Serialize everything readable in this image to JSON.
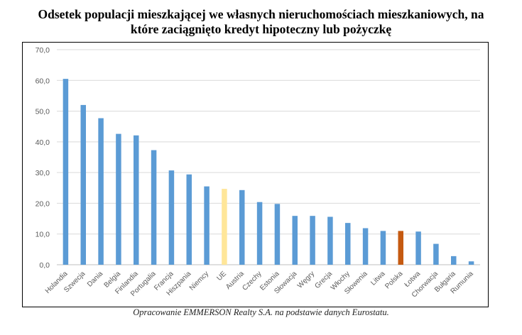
{
  "title_line1": "Odsetek populacji mieszkającej we własnych nieruchomościach mieszkaniowych, na",
  "title_line2": "które zaciągnięto kredyt hipoteczny lub pożyczkę",
  "caption": "Opracowanie EMMERSON Realty S.A. na podstawie danych Eurostatu.",
  "colors": {
    "default": "#5b9bd5",
    "ue": "#ffe699",
    "polska": "#c55a11",
    "grid": "#d9d9d9",
    "axis_text": "#595959"
  },
  "chart_data": {
    "type": "bar",
    "title": "Odsetek populacji mieszkającej we własnych nieruchomościach mieszkaniowych, na które zaciągnięto kredyt hipoteczny lub pożyczkę",
    "categories": [
      "Holandia",
      "Szwecja",
      "Dania",
      "Belgia",
      "Finlandia",
      "Portugalia",
      "Francja",
      "Hiszpania",
      "Niemcy",
      "UE",
      "Austria",
      "Czechy",
      "Estonia",
      "Słowacja",
      "Węgry",
      "Grecja",
      "Włochy",
      "Słowenia",
      "Litwa",
      "Polska",
      "Łotwa",
      "Chorwacja",
      "Bułgaria",
      "Rumunia"
    ],
    "values": [
      60.5,
      52.0,
      47.7,
      42.6,
      42.1,
      37.3,
      30.7,
      29.4,
      25.5,
      24.7,
      24.3,
      20.4,
      19.8,
      15.9,
      15.9,
      15.6,
      13.6,
      11.9,
      11.0,
      11.0,
      10.8,
      6.8,
      2.8,
      1.1
    ],
    "highlight": {
      "UE": "ue",
      "Polska": "polska"
    },
    "yticks": [
      "0,0",
      "10,0",
      "20,0",
      "30,0",
      "40,0",
      "50,0",
      "60,0",
      "70,0"
    ],
    "ylim": [
      0,
      70
    ],
    "grid": true,
    "xlabel": "",
    "ylabel": ""
  }
}
